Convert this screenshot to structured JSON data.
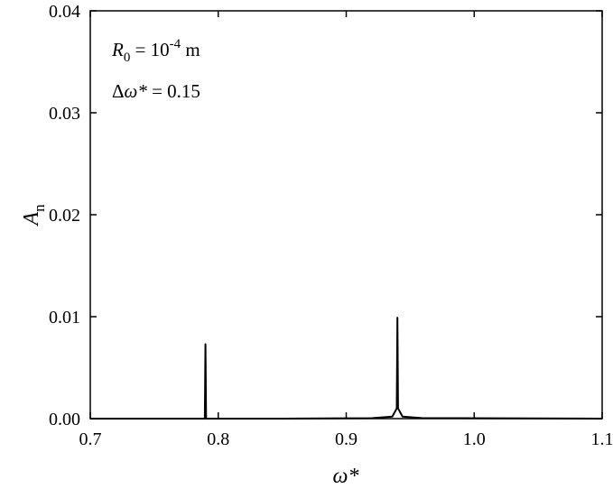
{
  "chart_data": {
    "type": "line",
    "xlabel": "ω*",
    "ylabel": {
      "main": "A",
      "sub": "n"
    },
    "xlim": [
      0.7,
      1.1
    ],
    "ylim": [
      0,
      0.04
    ],
    "x_ticks": [
      "0.7",
      "0.8",
      "0.9",
      "1.0",
      "1.1"
    ],
    "y_ticks": [
      "0.00",
      "0.01",
      "0.02",
      "0.03",
      "0.04"
    ],
    "grid": false,
    "annotations": {
      "line1": {
        "var": "R",
        "sub": "0",
        "eq": " = 10",
        "sup": "-4",
        "unit": " m"
      },
      "line2": {
        "delta": "Δ",
        "var": "ω*",
        "eq": " = 0.15"
      }
    },
    "series": [
      {
        "color": "#000000",
        "x": [
          0.7,
          0.785,
          0.7895,
          0.79,
          0.7905,
          0.795,
          0.85,
          0.92,
          0.936,
          0.9395,
          0.94,
          0.9405,
          0.944,
          0.96,
          1.1
        ],
        "y": [
          0.0,
          0.0,
          0.0,
          0.0073,
          0.0,
          0.0,
          0.0,
          5e-05,
          0.0002,
          0.001,
          0.0099,
          0.001,
          0.0002,
          5e-05,
          0.0
        ]
      }
    ]
  }
}
